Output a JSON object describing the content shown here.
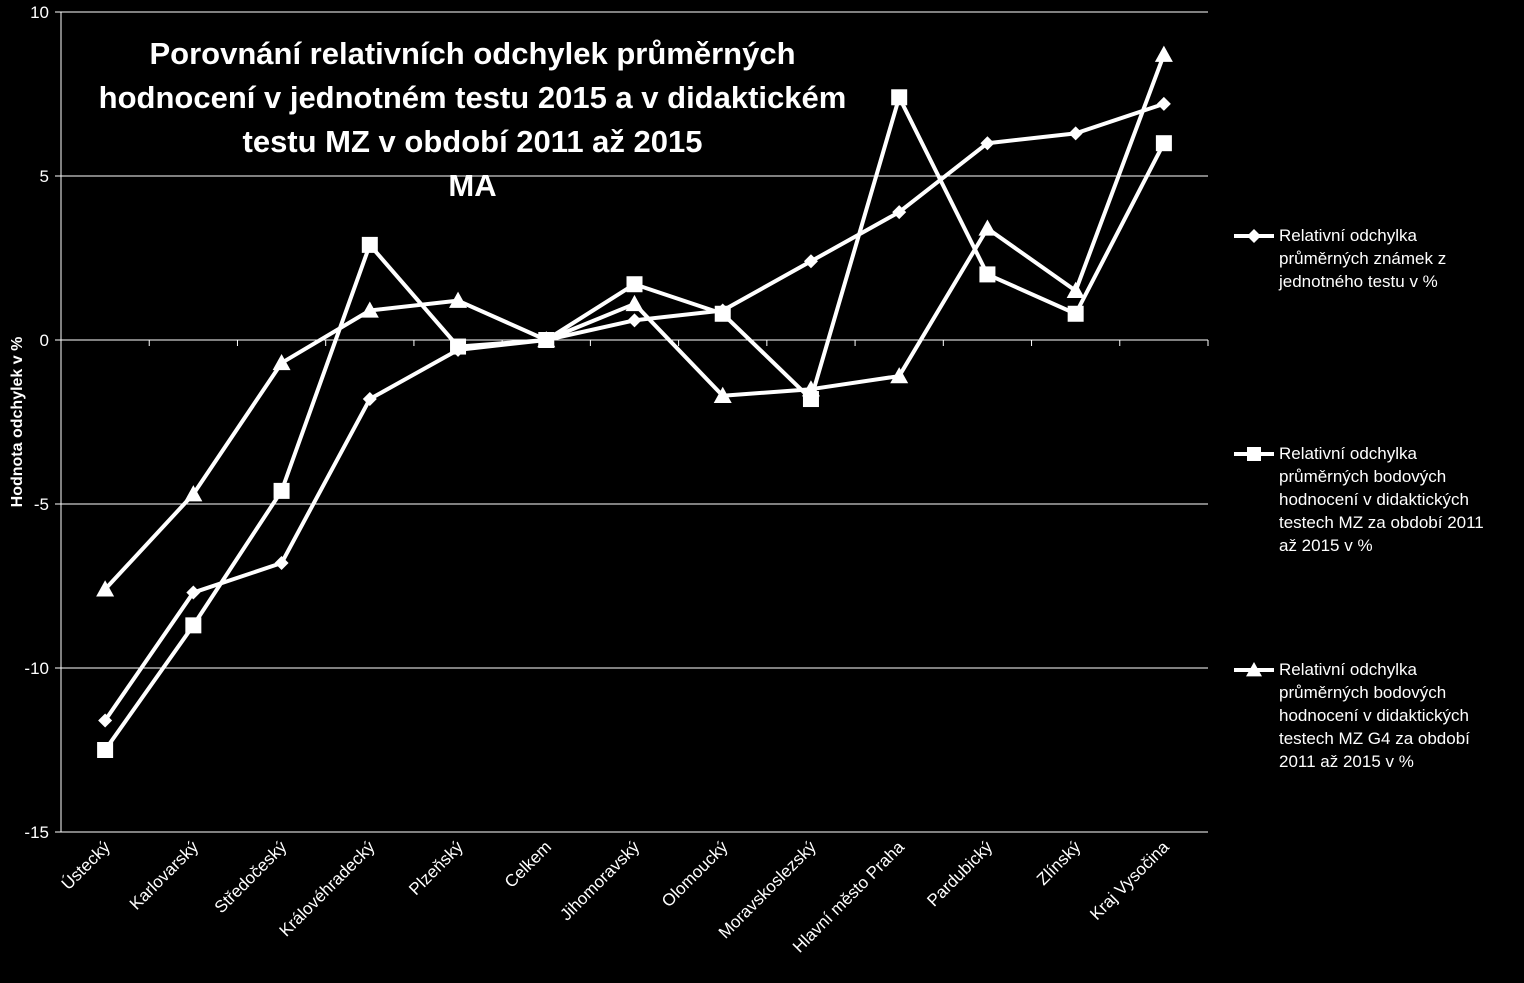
{
  "chart_data": {
    "type": "line",
    "title_lines": [
      "Porovnání relativních odchylek průměrných",
      "hodnocení v jednotném testu 2015 a v didaktickém",
      "testu MZ v období 2011 až 2015",
      "MA"
    ],
    "xlabel": "",
    "ylabel": "Hodnota odchylek v %",
    "ylim": [
      -15,
      10
    ],
    "yticks": [
      10,
      5,
      0,
      -5,
      -10,
      -15
    ],
    "grid": true,
    "legend_position": "right",
    "categories": [
      "Ústecký",
      "Karlovarský",
      "Středočeský",
      "Královéhradecký",
      "Plzeňský",
      "Celkem",
      "Jihomoravský",
      "Olomoucký",
      "Moravskoslezský",
      "Hlavní město Praha",
      "Pardubický",
      "Zlínský",
      "Kraj Vysočina"
    ],
    "series": [
      {
        "name": "Relativní odchylka průměrných známek z jednotného testu v %",
        "legend_lines": [
          "Relativní odchylka",
          "průměrných známek z",
          "jednotného testu v %"
        ],
        "marker": "diamond",
        "values": [
          -11.6,
          -7.7,
          -6.8,
          -1.8,
          -0.3,
          0.0,
          0.6,
          0.9,
          2.4,
          3.9,
          6.0,
          6.3,
          7.2
        ]
      },
      {
        "name": "Relativní odchylka průměrných bodových hodnocení v didaktických testech MZ za období 2011 až 2015 v %",
        "legend_lines": [
          "Relativní odchylka",
          "průměrných bodových",
          "hodnocení v didaktických",
          "testech MZ za období 2011",
          "až 2015 v %"
        ],
        "marker": "square",
        "values": [
          -12.5,
          -8.7,
          -4.6,
          2.9,
          -0.2,
          0.0,
          1.7,
          0.8,
          -1.8,
          7.4,
          2.0,
          0.8,
          6.0
        ]
      },
      {
        "name": "Relativní odchylka průměrných bodových hodnocení v didaktických testech MZ G4 za období 2011 až 2015 v %",
        "legend_lines": [
          "Relativní odchylka",
          "průměrných bodových",
          "hodnocení v didaktických",
          "testech MZ G4 za období",
          "2011 až 2015 v %"
        ],
        "marker": "triangle",
        "values": [
          -7.6,
          -4.7,
          -0.7,
          0.9,
          1.2,
          0.0,
          1.1,
          -1.7,
          -1.5,
          -1.1,
          3.4,
          1.5,
          8.7
        ]
      }
    ],
    "line_color": "#ffffff",
    "grid_color": "#ffffff",
    "background": "#000000"
  }
}
